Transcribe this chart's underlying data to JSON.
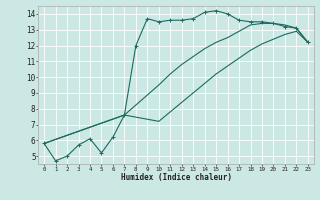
{
  "xlabel": "Humidex (Indice chaleur)",
  "xlim": [
    -0.5,
    23.5
  ],
  "ylim": [
    4.5,
    14.5
  ],
  "xticks": [
    0,
    1,
    2,
    3,
    4,
    5,
    6,
    7,
    8,
    9,
    10,
    11,
    12,
    13,
    14,
    15,
    16,
    17,
    18,
    19,
    20,
    21,
    22,
    23
  ],
  "yticks": [
    5,
    6,
    7,
    8,
    9,
    10,
    11,
    12,
    13,
    14
  ],
  "bg_color": "#cce8e4",
  "grid_color": "#ffffff",
  "line_color": "#1a6b5e",
  "line1_x": [
    0,
    1,
    2,
    3,
    4,
    5,
    6,
    7,
    8,
    9,
    10,
    11,
    12,
    13,
    14,
    15,
    16,
    17,
    18,
    19,
    20,
    21,
    22,
    23
  ],
  "line1_y": [
    5.8,
    4.7,
    5.0,
    5.7,
    6.1,
    5.2,
    6.2,
    7.6,
    12.0,
    13.7,
    13.5,
    13.6,
    13.6,
    13.7,
    14.1,
    14.2,
    14.0,
    13.6,
    13.5,
    13.5,
    13.4,
    13.2,
    13.1,
    12.2
  ],
  "line2_x": [
    0,
    7,
    10,
    11,
    12,
    13,
    14,
    15,
    16,
    17,
    18,
    19,
    20,
    21,
    22,
    23
  ],
  "line2_y": [
    5.8,
    7.6,
    9.5,
    10.2,
    10.8,
    11.3,
    11.8,
    12.2,
    12.5,
    12.9,
    13.3,
    13.4,
    13.4,
    13.3,
    13.1,
    12.2
  ],
  "line3_x": [
    0,
    7,
    10,
    11,
    12,
    13,
    14,
    15,
    16,
    17,
    18,
    19,
    20,
    21,
    22,
    23
  ],
  "line3_y": [
    5.8,
    7.6,
    7.2,
    7.8,
    8.4,
    9.0,
    9.6,
    10.2,
    10.7,
    11.2,
    11.7,
    12.1,
    12.4,
    12.7,
    12.9,
    12.2
  ]
}
